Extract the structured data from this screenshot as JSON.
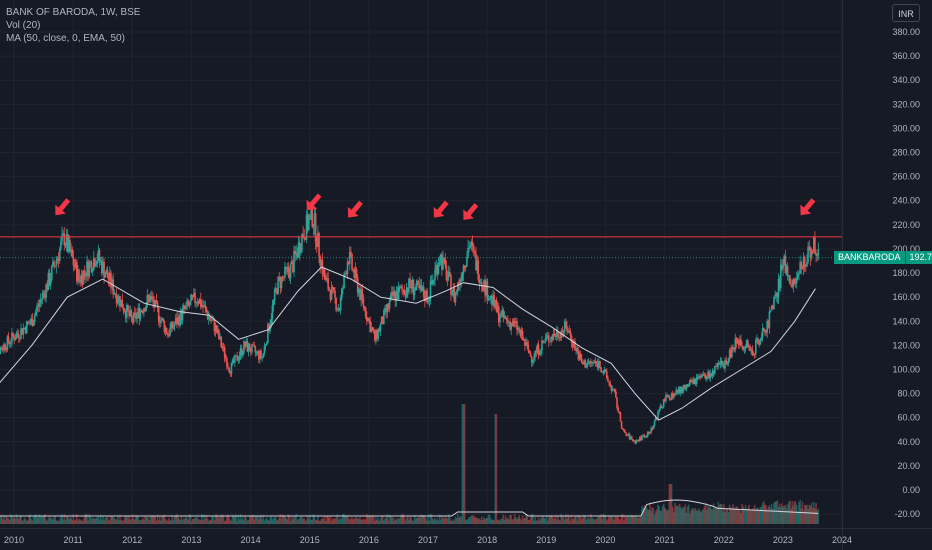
{
  "legend": {
    "title": "BANK OF BARODA, 1W, BSE",
    "volume": "Vol (20)",
    "ma": "MA (50, close, 0, EMA, 50)"
  },
  "currency_button": "INR",
  "price_tag": {
    "symbol": "BANKBARODA",
    "value": "192.70"
  },
  "colors": {
    "background": "#161a25",
    "up": "#26a69a",
    "down": "#ef5350",
    "ma_line": "#d1d4dc",
    "resistance": "#f23645",
    "arrow": "#f23645"
  },
  "chart_data": {
    "type": "candlestick",
    "symbol": "BANK OF BARODA",
    "interval": "1W",
    "exchange": "BSE",
    "x_ticks": [
      "2010",
      "2011",
      "2012",
      "2013",
      "2014",
      "2015",
      "2016",
      "2017",
      "2018",
      "2019",
      "2020",
      "2021",
      "2022",
      "2023",
      "2024"
    ],
    "y_ticks": [
      "380.00",
      "360.00",
      "340.00",
      "320.00",
      "300.00",
      "280.00",
      "260.00",
      "240.00",
      "220.00",
      "200.00",
      "180.00",
      "160.00",
      "140.00",
      "120.00",
      "100.00",
      "80.00",
      "60.00",
      "40.00",
      "20.00",
      "0.00",
      "-20.00"
    ],
    "price_path": [
      [
        2009.6,
        110
      ],
      [
        2010.3,
        140
      ],
      [
        2010.6,
        175
      ],
      [
        2010.85,
        210
      ],
      [
        2011.1,
        175
      ],
      [
        2011.4,
        195
      ],
      [
        2011.7,
        165
      ],
      [
        2012.0,
        140
      ],
      [
        2012.3,
        160
      ],
      [
        2012.6,
        130
      ],
      [
        2012.9,
        150
      ],
      [
        2013.1,
        160
      ],
      [
        2013.4,
        135
      ],
      [
        2013.65,
        100
      ],
      [
        2013.9,
        120
      ],
      [
        2014.2,
        110
      ],
      [
        2014.45,
        170
      ],
      [
        2014.7,
        185
      ],
      [
        2014.9,
        215
      ],
      [
        2015.05,
        228
      ],
      [
        2015.25,
        175
      ],
      [
        2015.5,
        150
      ],
      [
        2015.65,
        195
      ],
      [
        2015.9,
        155
      ],
      [
        2016.1,
        125
      ],
      [
        2016.4,
        160
      ],
      [
        2016.7,
        170
      ],
      [
        2017.0,
        160
      ],
      [
        2017.2,
        195
      ],
      [
        2017.45,
        160
      ],
      [
        2017.7,
        205
      ],
      [
        2017.9,
        175
      ],
      [
        2018.2,
        145
      ],
      [
        2018.5,
        135
      ],
      [
        2018.75,
        110
      ],
      [
        2019.0,
        125
      ],
      [
        2019.35,
        135
      ],
      [
        2019.6,
        105
      ],
      [
        2019.9,
        105
      ],
      [
        2020.15,
        80
      ],
      [
        2020.3,
        48
      ],
      [
        2020.5,
        40
      ],
      [
        2020.75,
        48
      ],
      [
        2021.0,
        75
      ],
      [
        2021.25,
        82
      ],
      [
        2021.5,
        90
      ],
      [
        2021.75,
        95
      ],
      [
        2022.0,
        105
      ],
      [
        2022.25,
        125
      ],
      [
        2022.5,
        115
      ],
      [
        2022.75,
        140
      ],
      [
        2022.9,
        160
      ],
      [
        2023.0,
        190
      ],
      [
        2023.2,
        170
      ],
      [
        2023.4,
        195
      ],
      [
        2023.55,
        205
      ],
      [
        2023.6,
        193
      ]
    ],
    "ema50_path": [
      [
        2009.6,
        80
      ],
      [
        2010.3,
        120
      ],
      [
        2010.9,
        160
      ],
      [
        2011.5,
        175
      ],
      [
        2012.2,
        155
      ],
      [
        2012.8,
        148
      ],
      [
        2013.3,
        145
      ],
      [
        2013.8,
        125
      ],
      [
        2014.3,
        133
      ],
      [
        2014.8,
        165
      ],
      [
        2015.2,
        185
      ],
      [
        2015.7,
        175
      ],
      [
        2016.2,
        160
      ],
      [
        2016.8,
        155
      ],
      [
        2017.3,
        165
      ],
      [
        2017.6,
        172
      ],
      [
        2018.1,
        168
      ],
      [
        2018.6,
        150
      ],
      [
        2019.1,
        135
      ],
      [
        2019.6,
        118
      ],
      [
        2020.1,
        105
      ],
      [
        2020.5,
        80
      ],
      [
        2020.9,
        58
      ],
      [
        2021.3,
        68
      ],
      [
        2021.8,
        85
      ],
      [
        2022.3,
        100
      ],
      [
        2022.8,
        115
      ],
      [
        2023.2,
        140
      ],
      [
        2023.55,
        167
      ]
    ],
    "resistance_level": 210,
    "last_price": 192.7
  }
}
